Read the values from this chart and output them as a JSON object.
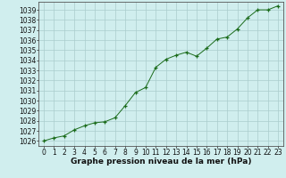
{
  "x": [
    0,
    1,
    2,
    3,
    4,
    5,
    6,
    7,
    8,
    9,
    10,
    11,
    12,
    13,
    14,
    15,
    16,
    17,
    18,
    19,
    20,
    21,
    22,
    23
  ],
  "y": [
    1026.0,
    1026.3,
    1026.5,
    1027.1,
    1027.5,
    1027.8,
    1027.9,
    1028.3,
    1029.5,
    1030.8,
    1031.3,
    1033.3,
    1034.1,
    1034.5,
    1034.8,
    1034.4,
    1035.2,
    1036.1,
    1036.3,
    1037.1,
    1038.2,
    1039.0,
    1039.0,
    1039.4
  ],
  "line_color": "#1a6b1a",
  "marker_color": "#1a6b1a",
  "bg_color": "#d0eeee",
  "grid_color": "#aacccc",
  "ylabel_ticks": [
    1026,
    1027,
    1028,
    1029,
    1030,
    1031,
    1032,
    1033,
    1034,
    1035,
    1036,
    1037,
    1038,
    1039
  ],
  "xlabel": "Graphe pression niveau de la mer (hPa)",
  "xlim": [
    -0.5,
    23.5
  ],
  "ylim": [
    1025.5,
    1039.8
  ],
  "axis_fontsize": 5.5,
  "label_fontsize": 6.5
}
